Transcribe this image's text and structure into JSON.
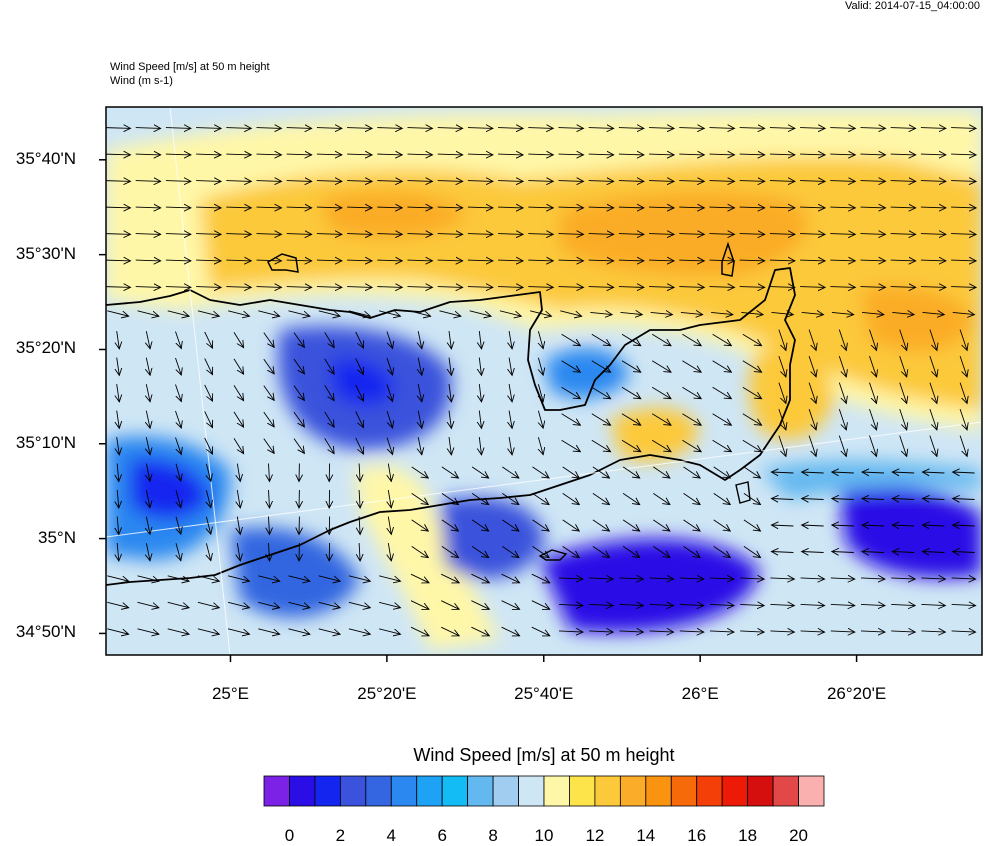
{
  "valid_label": "Valid: 2014-07-15_04:00:00",
  "titles": {
    "line1": "Wind Speed [m/s] at 50 m height",
    "line2": "Wind   (m s-1)"
  },
  "map": {
    "lat_ticks": [
      {
        "value": 35.667,
        "label": "35°40'N"
      },
      {
        "value": 35.5,
        "label": "35°30'N"
      },
      {
        "value": 35.333,
        "label": "35°20'N"
      },
      {
        "value": 35.167,
        "label": "35°10'N"
      },
      {
        "value": 35.0,
        "label": "35°N"
      },
      {
        "value": 34.833,
        "label": "34°50'N"
      }
    ],
    "lon_ticks": [
      {
        "value": 25.0,
        "label": "25°E"
      },
      {
        "value": 25.333,
        "label": "25°20'E"
      },
      {
        "value": 25.667,
        "label": "25°40'E"
      },
      {
        "value": 26.0,
        "label": "26°E"
      },
      {
        "value": 26.333,
        "label": "26°20'E"
      }
    ],
    "lon_range": [
      24.735,
      26.6
    ],
    "lat_range": [
      34.795,
      35.76
    ]
  },
  "colorbar": {
    "title": "Wind Speed [m/s] at 50 m height",
    "colors": [
      "#7b22e6",
      "#2b0de6",
      "#1525f0",
      "#3a52dc",
      "#3366e0",
      "#2a88f0",
      "#1ea2f5",
      "#14bcf5",
      "#64b8f0",
      "#a0cdf0",
      "#cfe6f5",
      "#fff7a8",
      "#fde44a",
      "#fcc93a",
      "#fbac28",
      "#fa9310",
      "#f66a0a",
      "#f43f08",
      "#ee1a08",
      "#d50e0e",
      "#e24848",
      "#fbb0b0"
    ],
    "labels": [
      "0",
      "2",
      "4",
      "6",
      "8",
      "10",
      "12",
      "14",
      "16",
      "18",
      "20"
    ]
  }
}
